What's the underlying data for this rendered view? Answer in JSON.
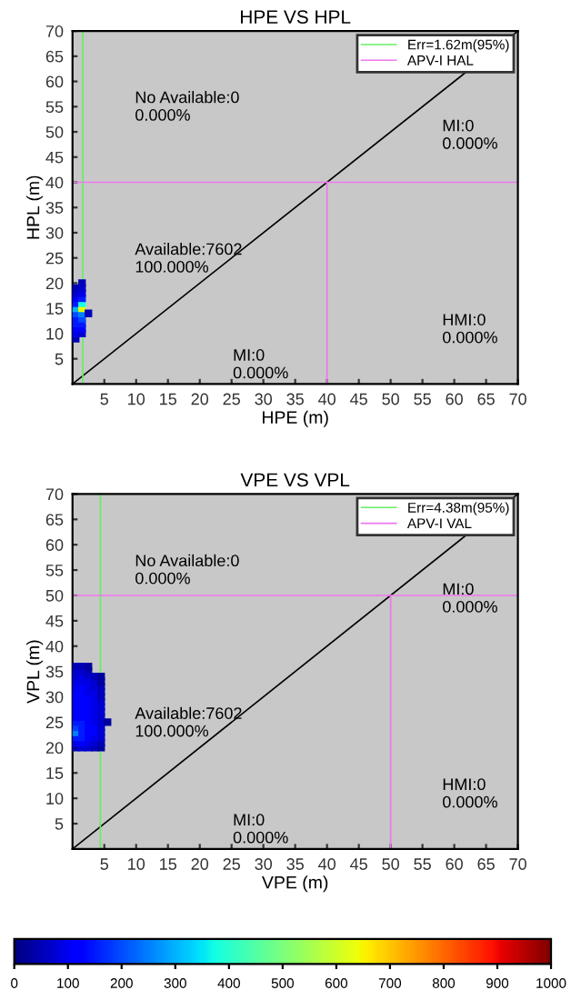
{
  "chart_data": [
    {
      "type": "scatter",
      "title": "HPE VS HPL",
      "xlabel": "HPE (m)",
      "ylabel": "HPL (m)",
      "xlim": [
        0,
        70
      ],
      "ylim": [
        0,
        70
      ],
      "xticks": [
        5,
        10,
        15,
        20,
        25,
        30,
        35,
        40,
        45,
        50,
        55,
        60,
        65,
        70
      ],
      "yticks": [
        5,
        10,
        15,
        20,
        25,
        30,
        35,
        40,
        45,
        50,
        55,
        60,
        65,
        70
      ],
      "legend": "top right",
      "annotations": [
        "No Available:0\n0.000%",
        "MI:0\n0.000%",
        "Available:7602\n100.000%",
        "MI:0\n0.000%",
        "HMI:0\n0.000%"
      ],
      "series": [
        {
          "marker": "square",
          "x": [
            0.5,
            0.5,
            0.5,
            0.5,
            0.5,
            0.5,
            0.5,
            0.5,
            0.5,
            0.5,
            0.5,
            1.5,
            1.5,
            1.5,
            1.5,
            1.5,
            1.5,
            1.5,
            1.5,
            1.5,
            1.5,
            1.5,
            2.5
          ],
          "values": [
            9,
            10,
            11,
            12,
            13,
            14,
            15,
            16,
            17,
            18,
            19,
            10,
            11,
            12,
            13,
            14,
            15,
            16,
            17,
            18,
            19,
            20,
            14
          ],
          "colors": [
            "#0000b8",
            "#0000e8",
            "#0000ff",
            "#001aff",
            "#001aff",
            "#004dff",
            "#00b3ff",
            "#001aff",
            "#0000ff",
            "#0000d0",
            "#0000b8",
            "#0000d0",
            "#0000ff",
            "#001aff",
            "#004dff",
            "#0080ff",
            "#e6ff00",
            "#1affe6",
            "#001aff",
            "#0000e8",
            "#0000d0",
            "#0000b8",
            "#0000b8"
          ]
        },
        {
          "type": "line",
          "x": [
            0,
            70
          ],
          "values": [
            0,
            70
          ],
          "color": "#000000"
        },
        {
          "type": "line",
          "name": "Err=1.62m(95%)",
          "x": [
            1.62,
            1.62
          ],
          "values": [
            0,
            70
          ],
          "color": "#66ee66"
        },
        {
          "type": "line",
          "name": "APV-I HAL",
          "x": [
            0,
            70,
            40,
            40
          ],
          "values": [
            40,
            40,
            40,
            0
          ],
          "color": "#ee77ee"
        }
      ]
    },
    {
      "type": "scatter",
      "title": "VPE VS VPL",
      "xlabel": "VPE (m)",
      "ylabel": "VPL (m)",
      "xlim": [
        0,
        70
      ],
      "ylim": [
        0,
        70
      ],
      "xticks": [
        5,
        10,
        15,
        20,
        25,
        30,
        35,
        40,
        45,
        50,
        55,
        60,
        65,
        70
      ],
      "yticks": [
        5,
        10,
        15,
        20,
        25,
        30,
        35,
        40,
        45,
        50,
        55,
        60,
        65,
        70
      ],
      "legend": "top right",
      "clim": [
        0,
        1000
      ],
      "cticks": [
        0,
        100,
        200,
        300,
        400,
        500,
        600,
        700,
        800,
        900,
        1000
      ],
      "annotations": [
        "No Available:0\n0.000%",
        "MI:0\n0.000%",
        "Available:7602\n100.000%",
        "MI:0\n0.000%",
        "HMI:0\n0.000%"
      ],
      "series": [
        {
          "marker": "square",
          "x": [
            0.5,
            1.5,
            2.5,
            3.5,
            4.5,
            0.5,
            1.5,
            2.5,
            3.5,
            4.5,
            0.5,
            1.5,
            2.5,
            3.5,
            4.5,
            0.5,
            1.5,
            2.5,
            3.5,
            4.5,
            0.5,
            1.5,
            2.5,
            3.5,
            4.5,
            0.5,
            1.5,
            2.5,
            3.5,
            4.5,
            0.5,
            1.5,
            2.5,
            3.5,
            4.5,
            0.5,
            1.5,
            2.5,
            3.5,
            4.5,
            0.5,
            1.5,
            2.5,
            3.5,
            4.5,
            0.5,
            1.5,
            2.5,
            3.5,
            4.5,
            0.5,
            1.5,
            2.5,
            3.5,
            4.5,
            0.5,
            1.5,
            2.5,
            3.5,
            4.5,
            0.5,
            1.5,
            2.5,
            3.5,
            4.5,
            0.5,
            1.5,
            2.5,
            3.5,
            4.5,
            0.5,
            1.5,
            2.5,
            3.5,
            4.5,
            0.5,
            1.5,
            2.5,
            0.5,
            1.5,
            2.5,
            5.5
          ],
          "values": [
            20,
            20,
            20,
            20,
            20,
            21,
            21,
            21,
            21,
            21,
            22,
            22,
            22,
            22,
            22,
            23,
            23,
            23,
            23,
            23,
            24,
            24,
            24,
            24,
            24,
            25,
            25,
            25,
            25,
            25,
            26,
            26,
            26,
            26,
            26,
            27,
            27,
            27,
            27,
            27,
            28,
            28,
            28,
            28,
            28,
            29,
            29,
            29,
            29,
            29,
            30,
            30,
            30,
            30,
            30,
            31,
            31,
            31,
            31,
            31,
            32,
            32,
            32,
            32,
            32,
            33,
            33,
            33,
            33,
            33,
            34,
            34,
            34,
            34,
            34,
            35,
            35,
            35,
            36,
            36,
            36,
            25
          ],
          "colors": [
            "#0000b8",
            "#0000d0",
            "#0000d0",
            "#0000b8",
            "#0000a0",
            "#0000e8",
            "#0000ff",
            "#0000e8",
            "#0000d0",
            "#0000b8",
            "#001aff",
            "#001aff",
            "#0000ff",
            "#0000e8",
            "#0000d0",
            "#0080ff",
            "#001aff",
            "#0000ff",
            "#0000ff",
            "#0000d0",
            "#0040ff",
            "#001aff",
            "#0000ff",
            "#0000ff",
            "#0000d0",
            "#001aff",
            "#001aff",
            "#0000ff",
            "#0000e8",
            "#0000d0",
            "#0000ff",
            "#0000ff",
            "#0000ff",
            "#0000e8",
            "#0000d0",
            "#0000ff",
            "#0000ff",
            "#0000ff",
            "#0000e8",
            "#0000d0",
            "#0000ff",
            "#0000ff",
            "#0000ff",
            "#0000e8",
            "#0000d0",
            "#0000ff",
            "#0000ff",
            "#0000ff",
            "#0000e8",
            "#0000d0",
            "#0000ff",
            "#0000ff",
            "#0000ff",
            "#0000e8",
            "#0000b8",
            "#0000ff",
            "#0000ff",
            "#0000e8",
            "#0000e8",
            "#0000b8",
            "#0000e8",
            "#0000ff",
            "#0000e8",
            "#0000d0",
            "#0000b8",
            "#0000e8",
            "#0000e8",
            "#0000e8",
            "#0000d0",
            "#0000a0",
            "#0000d0",
            "#0000e8",
            "#0000d0",
            "#0000b8",
            "#0000a0",
            "#0000d0",
            "#0000d0",
            "#0000b8",
            "#0000b8",
            "#0000b8",
            "#0000a0",
            "#0000a0"
          ]
        },
        {
          "type": "line",
          "x": [
            0,
            70
          ],
          "values": [
            0,
            70
          ],
          "color": "#000000"
        },
        {
          "type": "line",
          "name": "Err=4.38m(95%)",
          "x": [
            4.38,
            4.38
          ],
          "values": [
            0,
            70
          ],
          "color": "#66ee66"
        },
        {
          "type": "line",
          "name": "APV-I VAL",
          "x": [
            0,
            70,
            50,
            50
          ],
          "values": [
            50,
            50,
            50,
            0
          ],
          "color": "#ee77ee"
        }
      ]
    }
  ]
}
